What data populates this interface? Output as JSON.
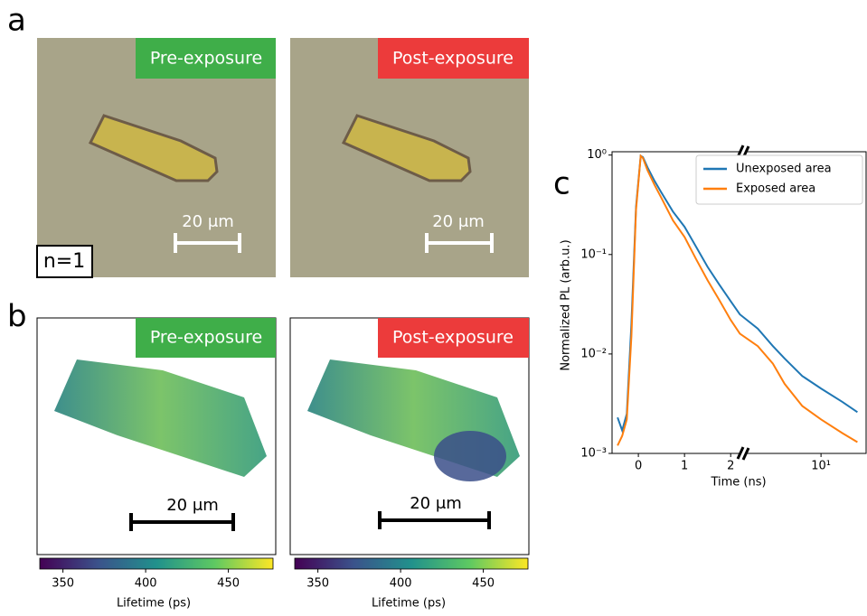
{
  "panels": {
    "a": {
      "label": "a",
      "sample": "n=1",
      "images": [
        {
          "tag": "Pre-exposure",
          "scale_bar": "20 μm"
        },
        {
          "tag": "Post-exposure",
          "scale_bar": "20 μm"
        }
      ]
    },
    "b": {
      "label": "b",
      "images": [
        {
          "tag": "Pre-exposure",
          "scale_bar": "20 μm"
        },
        {
          "tag": "Post-exposure",
          "scale_bar": "20 μm"
        }
      ],
      "colorbar": {
        "label": "Lifetime (ps)",
        "lim": [
          336,
          477
        ],
        "ticks": [
          350,
          400,
          450
        ]
      }
    }
  },
  "chart_data": {
    "type": "line",
    "panel_label": "c",
    "xlabel": "Time (ns)",
    "ylabel": "Normalized PL (arb.u.)",
    "log_y": true,
    "x_break": 2.27,
    "xlim": [
      -0.57,
      23.6
    ],
    "ylim": [
      0.001,
      1.08
    ],
    "xticks": [
      0,
      1,
      2,
      {
        "value": 10,
        "label": "10¹"
      }
    ],
    "yticks": [
      {
        "value": 0.001,
        "label": "10⁻³"
      },
      {
        "value": 0.01,
        "label": "10⁻²"
      },
      {
        "value": 0.1,
        "label": "10⁻¹"
      },
      {
        "value": 1,
        "label": "10⁰"
      }
    ],
    "legend": "upper right",
    "x": [
      -0.45,
      -0.35,
      -0.25,
      -0.15,
      -0.05,
      0.05,
      0.1,
      0.2,
      0.35,
      0.5,
      0.75,
      1.0,
      1.25,
      1.5,
      1.75,
      2.0,
      2.2,
      3,
      4,
      5,
      7,
      10,
      15,
      20
    ],
    "series": [
      {
        "name": "Unexposed area",
        "color": "#1f77b4",
        "values": [
          0.0023,
          0.0017,
          0.0025,
          0.02,
          0.3,
          0.98,
          0.95,
          0.75,
          0.55,
          0.42,
          0.27,
          0.19,
          0.12,
          0.075,
          0.05,
          0.034,
          0.025,
          0.018,
          0.012,
          0.009,
          0.006,
          0.0045,
          0.0033,
          0.0026
        ]
      },
      {
        "name": "Exposed area",
        "color": "#ff7f0e",
        "values": [
          0.0012,
          0.0015,
          0.0022,
          0.015,
          0.28,
          0.98,
          0.93,
          0.7,
          0.5,
          0.37,
          0.22,
          0.15,
          0.09,
          0.055,
          0.035,
          0.022,
          0.016,
          0.012,
          0.008,
          0.005,
          0.003,
          0.0022,
          0.0016,
          0.0013
        ]
      }
    ]
  }
}
